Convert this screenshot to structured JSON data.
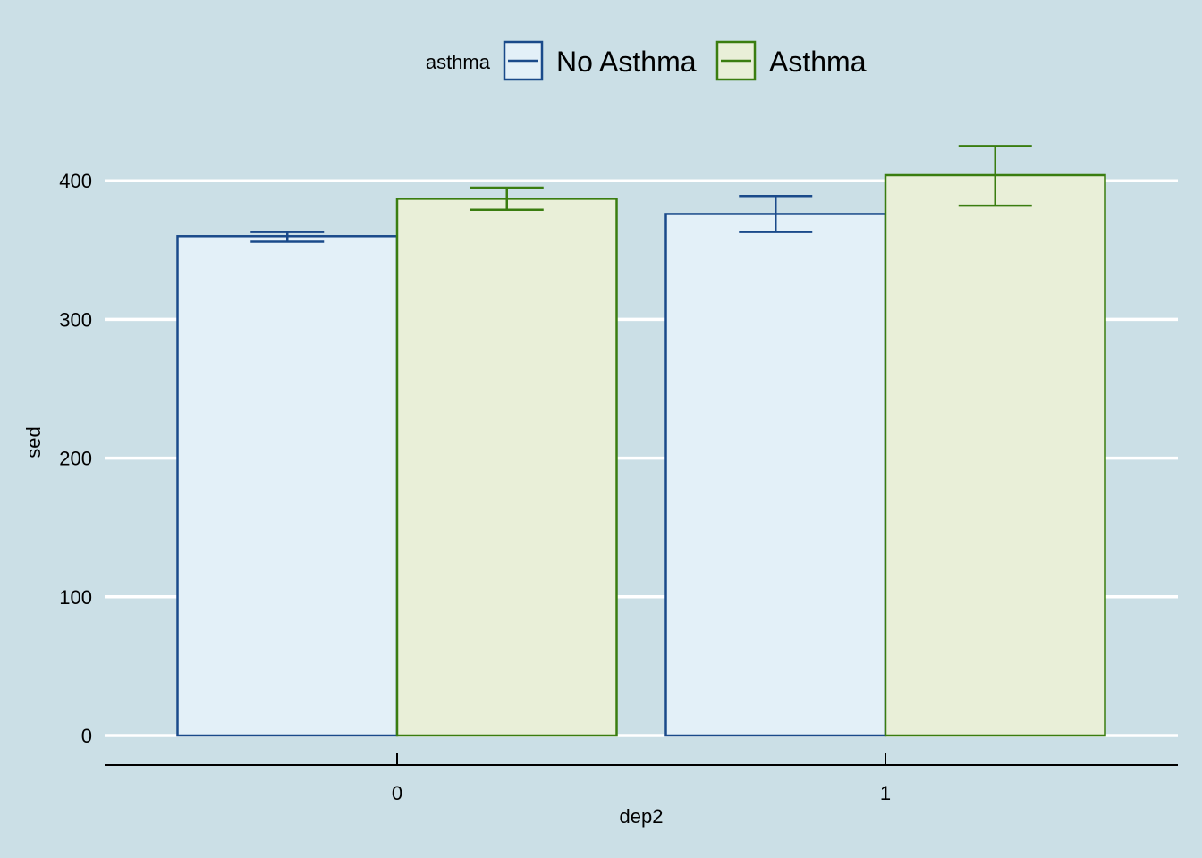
{
  "chart_data": {
    "type": "bar",
    "title": "",
    "xlabel": "dep2",
    "ylabel": "sed",
    "legend_title": "asthma",
    "legend_position": "top",
    "grid": true,
    "categories": [
      "0",
      "1"
    ],
    "ylim": [
      0,
      440
    ],
    "yticks": [
      0,
      100,
      200,
      300,
      400
    ],
    "ytick_labels": [
      "0",
      "100",
      "200",
      "300",
      "400"
    ],
    "series": [
      {
        "name": "No Asthma",
        "values": [
          360,
          376
        ],
        "err_low": [
          356,
          363
        ],
        "err_high": [
          363,
          389
        ],
        "color": "#1a4a8a",
        "fill": "#e3f0f8"
      },
      {
        "name": "Asthma",
        "values": [
          387,
          404
        ],
        "err_low": [
          379,
          382
        ],
        "err_high": [
          395,
          425
        ],
        "color": "#3a7d10",
        "fill": "#e9efd8"
      }
    ]
  }
}
